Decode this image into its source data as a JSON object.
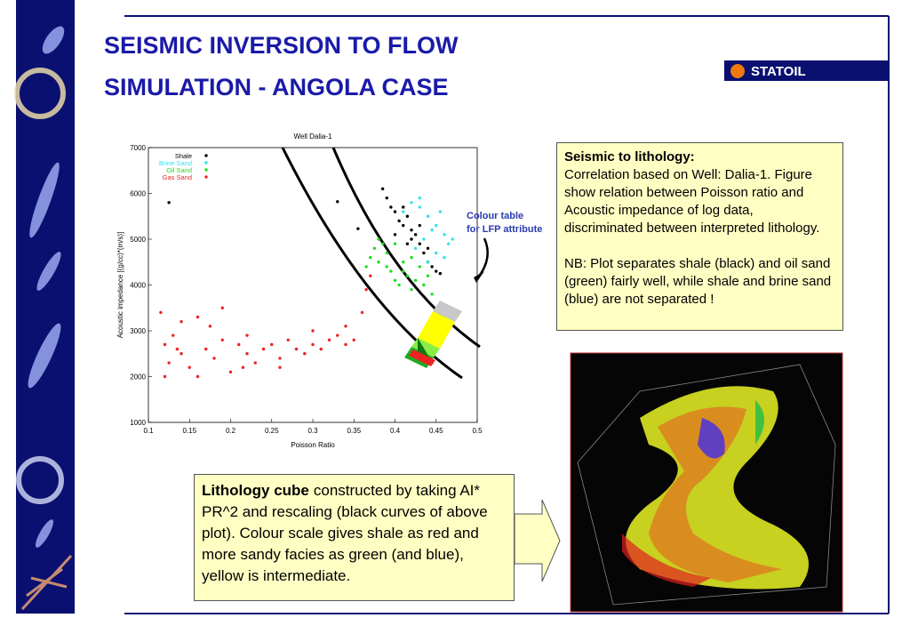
{
  "header": {
    "title_lines": [
      "SEISMIC INVERSION TO FLOW",
      "SIMULATION - ANGOLA CASE"
    ],
    "logo": "STATOIL"
  },
  "chart_data": {
    "type": "scatter",
    "title": "Well Dalia-1",
    "x_label": "Poisson Ratio",
    "y_label": "Acoustic impedance [(g/cc)*(m/s)]",
    "xlim": [
      0.1,
      0.5
    ],
    "xticks": [
      0.1,
      0.15,
      0.2,
      0.25,
      0.3,
      0.35,
      0.4,
      0.45,
      0.5
    ],
    "ylim": [
      1000,
      7000
    ],
    "yticks": [
      1000,
      2000,
      3000,
      4000,
      5000,
      6000,
      7000
    ],
    "legend": "upper left",
    "annotation": [
      "Colour table",
      "for LFP attribute"
    ],
    "series": [
      {
        "name": "Shale",
        "color": "#000000",
        "x": [
          0.125,
          0.33,
          0.355,
          0.385,
          0.39,
          0.395,
          0.4,
          0.405,
          0.41,
          0.415,
          0.42,
          0.425,
          0.43,
          0.435,
          0.44,
          0.445,
          0.45,
          0.455,
          0.41,
          0.42,
          0.43,
          0.44,
          0.4,
          0.415
        ],
        "y": [
          5800,
          5820,
          5230,
          6100,
          5900,
          5700,
          5600,
          5400,
          5300,
          5500,
          5200,
          5100,
          4900,
          4700,
          4500,
          4400,
          4300,
          4250,
          5700,
          5000,
          5300,
          4800,
          5100,
          4900
        ]
      },
      {
        "name": "Brine Sand",
        "color": "#33e0ee",
        "x": [
          0.41,
          0.42,
          0.43,
          0.44,
          0.45,
          0.46,
          0.465,
          0.455,
          0.445,
          0.435,
          0.425,
          0.47,
          0.45,
          0.46,
          0.44,
          0.43
        ],
        "y": [
          5600,
          5800,
          5700,
          5500,
          5300,
          5100,
          4900,
          5600,
          5200,
          5000,
          4800,
          5000,
          4700,
          4600,
          4500,
          5900
        ]
      },
      {
        "name": "Oil Sand",
        "color": "#22dd22",
        "x": [
          0.365,
          0.37,
          0.375,
          0.38,
          0.385,
          0.39,
          0.395,
          0.4,
          0.405,
          0.41,
          0.415,
          0.42,
          0.425,
          0.43,
          0.435,
          0.44,
          0.445,
          0.4,
          0.41,
          0.42,
          0.38,
          0.39
        ],
        "y": [
          4400,
          4600,
          4800,
          4500,
          4900,
          4700,
          4300,
          4100,
          4000,
          4300,
          4200,
          3900,
          4100,
          4400,
          4000,
          4200,
          3800,
          4900,
          4500,
          4600,
          5000,
          4400
        ]
      },
      {
        "name": "Gas Sand",
        "color": "#ee2222",
        "x": [
          0.115,
          0.12,
          0.125,
          0.13,
          0.14,
          0.15,
          0.16,
          0.17,
          0.18,
          0.19,
          0.2,
          0.21,
          0.22,
          0.23,
          0.24,
          0.25,
          0.26,
          0.27,
          0.28,
          0.29,
          0.3,
          0.31,
          0.32,
          0.33,
          0.34,
          0.35,
          0.36,
          0.365,
          0.37,
          0.12,
          0.14,
          0.16,
          0.19,
          0.22,
          0.26,
          0.3,
          0.34,
          0.135,
          0.175,
          0.215
        ],
        "y": [
          3400,
          2700,
          2300,
          2900,
          2500,
          2200,
          3300,
          2600,
          2400,
          2800,
          2100,
          2700,
          2500,
          2300,
          2600,
          2700,
          2400,
          2800,
          2600,
          2500,
          2700,
          2600,
          2800,
          2900,
          2700,
          2800,
          3400,
          3900,
          4200,
          2000,
          3200,
          2000,
          3500,
          2900,
          2200,
          3000,
          3100,
          2600,
          3100,
          2200
        ]
      }
    ]
  },
  "note_box": {
    "heading": "Seismic to lithology:",
    "paragraphs": [
      "Correlation based on Well: Dalia-1. Figure show relation between Poisson ratio and Acoustic impedance of log data, discriminated between interpreted lithology.",
      "NB: Plot separates shale (black) and oil sand (green) fairly well, while shale and brine sand (blue) are not separated !"
    ]
  },
  "cube_box": {
    "bold": "Lithology cube",
    "text": "constructed by taking AI* PR^2 and rescaling (black curves of above plot).  Colour scale gives shale as red and more sandy facies as green (and blue), yellow is intermediate."
  }
}
